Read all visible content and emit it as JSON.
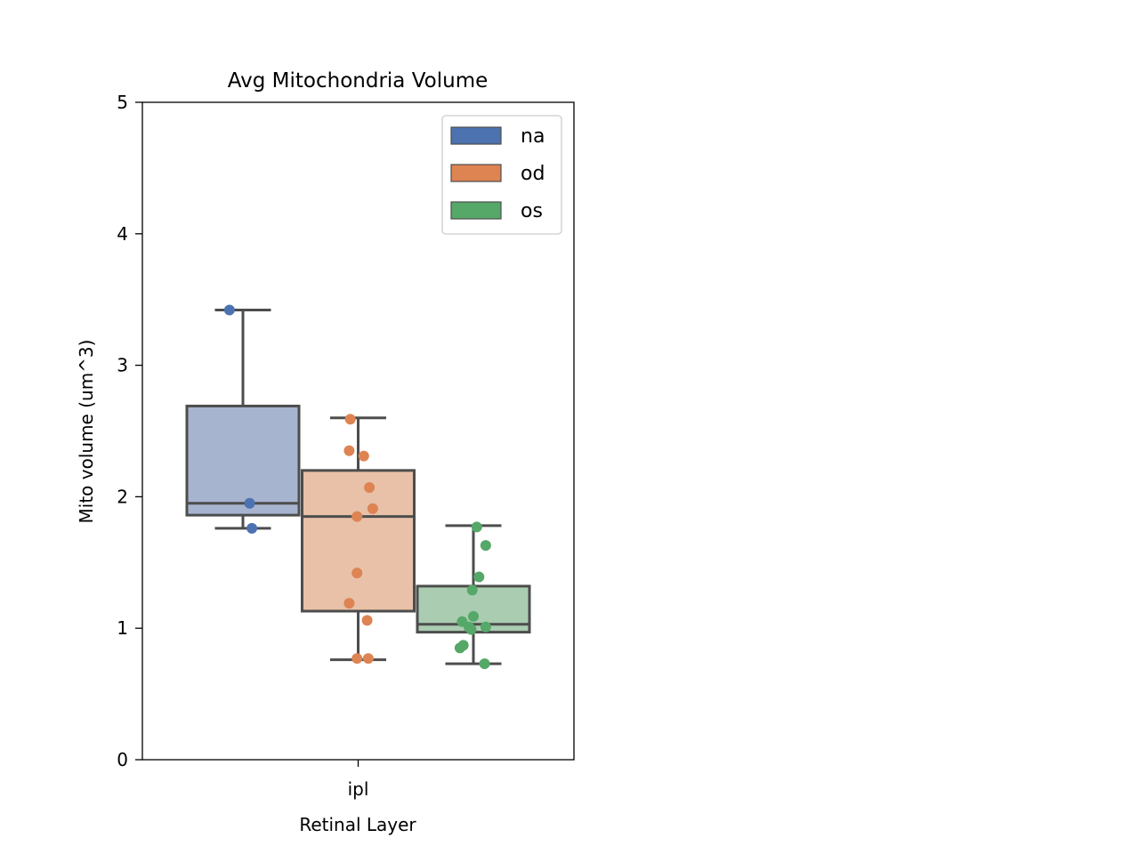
{
  "chart_data": {
    "type": "box",
    "title": "Avg Mitochondria Volume",
    "xlabel": "Retinal Layer",
    "ylabel": "Mito volume (um^3)",
    "categories": [
      "ipl"
    ],
    "ylim": [
      0,
      5
    ],
    "yticks": [
      "0",
      "1",
      "2",
      "3",
      "4",
      "5"
    ],
    "grid": false,
    "legend_position": "top-right",
    "series": [
      {
        "name": "na",
        "color": "#4c72b0",
        "box_color": "#a7b4cf",
        "box": {
          "whisker_low": 1.76,
          "q1": 1.86,
          "median": 1.95,
          "q3": 2.69,
          "whisker_high": 3.42
        },
        "points": [
          {
            "offset": -0.12,
            "y": 3.42
          },
          {
            "offset": 0.06,
            "y": 1.95
          },
          {
            "offset": 0.08,
            "y": 1.76
          }
        ]
      },
      {
        "name": "od",
        "color": "#dd8452",
        "box_color": "#e8c1a8",
        "box": {
          "whisker_low": 0.76,
          "q1": 1.13,
          "median": 1.85,
          "q3": 2.2,
          "whisker_high": 2.6
        },
        "points": [
          {
            "offset": -0.07,
            "y": 2.59
          },
          {
            "offset": -0.08,
            "y": 2.35
          },
          {
            "offset": 0.05,
            "y": 2.31
          },
          {
            "offset": 0.1,
            "y": 2.07
          },
          {
            "offset": 0.13,
            "y": 1.91
          },
          {
            "offset": -0.01,
            "y": 1.85
          },
          {
            "offset": -0.01,
            "y": 1.42
          },
          {
            "offset": -0.08,
            "y": 1.19
          },
          {
            "offset": 0.08,
            "y": 1.06
          },
          {
            "offset": -0.01,
            "y": 0.77
          },
          {
            "offset": 0.09,
            "y": 0.77
          }
        ]
      },
      {
        "name": "os",
        "color": "#55a868",
        "box_color": "#aacdb1",
        "box": {
          "whisker_low": 0.73,
          "q1": 0.97,
          "median": 1.03,
          "q3": 1.32,
          "whisker_high": 1.78
        },
        "points": [
          {
            "offset": 0.03,
            "y": 1.77
          },
          {
            "offset": 0.11,
            "y": 1.63
          },
          {
            "offset": 0.05,
            "y": 1.39
          },
          {
            "offset": -0.01,
            "y": 1.29
          },
          {
            "offset": -0.1,
            "y": 1.05
          },
          {
            "offset": 0.0,
            "y": 1.09
          },
          {
            "offset": -0.04,
            "y": 1.01
          },
          {
            "offset": 0.11,
            "y": 1.01
          },
          {
            "offset": -0.02,
            "y": 0.99
          },
          {
            "offset": -0.09,
            "y": 0.87
          },
          {
            "offset": -0.12,
            "y": 0.85
          },
          {
            "offset": 0.1,
            "y": 0.73
          }
        ]
      }
    ]
  }
}
